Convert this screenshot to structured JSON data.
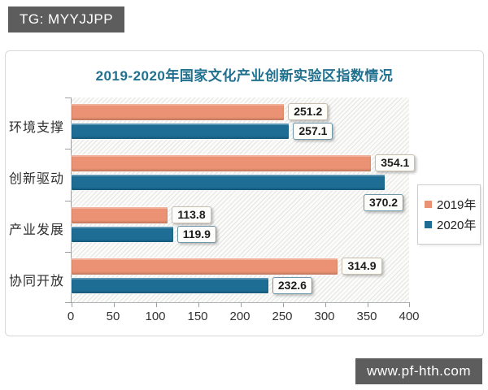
{
  "watermarks": {
    "top_left": "TG: MYYJJPP",
    "bottom_right": "www.pf-hth.com"
  },
  "chart_data": {
    "type": "bar",
    "orientation": "horizontal",
    "title": "2019-2020年国家文化产业创新实验区指数情况",
    "title_color": "#20718F",
    "categories": [
      "环境支撑",
      "创新驱动",
      "产业发展",
      "协同开放"
    ],
    "series": [
      {
        "name": "2019年",
        "color": "#EA9273",
        "box_border": "#C8BDAE",
        "values": [
          251.2,
          354.1,
          113.8,
          314.9
        ]
      },
      {
        "name": "2020年",
        "color": "#1D6D94",
        "box_border": "#6E96A8",
        "values": [
          257.1,
          370.2,
          119.9,
          232.6
        ]
      }
    ],
    "x_ticks": [
      0,
      50,
      100,
      150,
      200,
      250,
      300,
      350,
      400
    ],
    "xlim": [
      0,
      400
    ],
    "grid": false,
    "legend_position": "right",
    "plot_background": "diagonal-hatch",
    "value_labels": true,
    "label_below": [
      [
        1,
        1
      ]
    ]
  }
}
